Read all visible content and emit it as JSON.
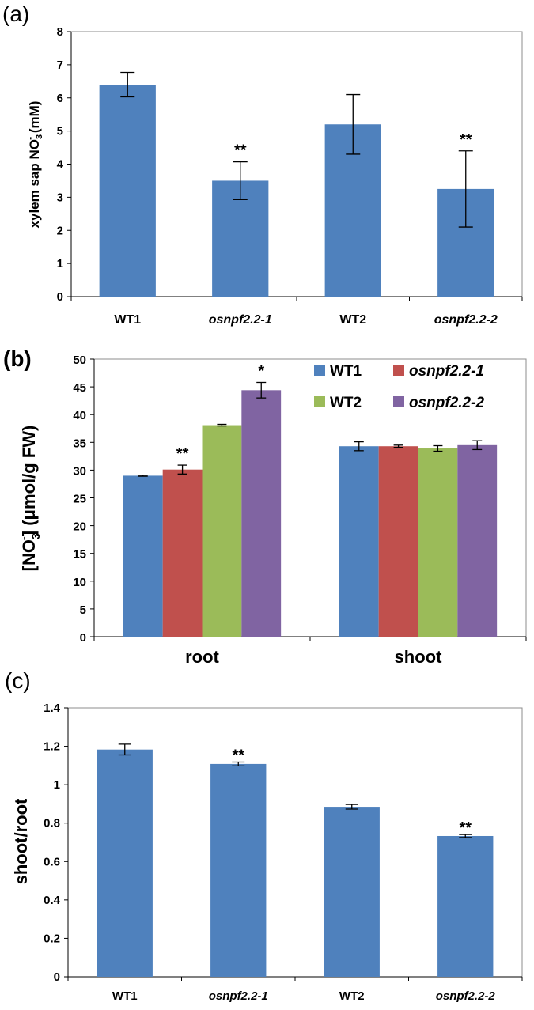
{
  "chart_data": [
    {
      "panel": "(a)",
      "type": "bar",
      "categories": [
        "WT1",
        "osnpf2.2-1",
        "WT2",
        "osnpf2.2-2"
      ],
      "italic_categories": [
        false,
        true,
        false,
        true
      ],
      "values": [
        6.4,
        3.5,
        5.2,
        3.25
      ],
      "errors": [
        0.37,
        0.57,
        0.9,
        1.15
      ],
      "significance": [
        "",
        "**",
        "",
        "**"
      ],
      "ylabel_main": "xylem sap NO",
      "ylabel_sub": "3",
      "ylabel_sup": "-",
      "ylabel_unit": " (mM)",
      "ylim": [
        0,
        8
      ],
      "yticks": [
        0,
        1,
        2,
        3,
        4,
        5,
        6,
        7,
        8
      ],
      "color": "#4f81bd"
    },
    {
      "panel": "(b)",
      "type": "bar",
      "categories": [
        "root",
        "shoot"
      ],
      "series": [
        {
          "name": "WT1",
          "italic": false,
          "color": "#4f81bd",
          "values": [
            29.0,
            34.3
          ],
          "errors": [
            0.1,
            0.8
          ]
        },
        {
          "name": "osnpf2.2-1",
          "italic": true,
          "color": "#c0504d",
          "values": [
            30.1,
            34.3
          ],
          "errors": [
            0.8,
            0.2
          ]
        },
        {
          "name": "WT2",
          "italic": false,
          "color": "#9bbb59",
          "values": [
            38.1,
            33.9
          ],
          "errors": [
            0.15,
            0.5
          ]
        },
        {
          "name": "osnpf2.2-2",
          "italic": true,
          "color": "#8064a2",
          "values": [
            44.4,
            34.5
          ],
          "errors": [
            1.4,
            0.8
          ]
        }
      ],
      "significance": [
        [
          "",
          "**",
          "",
          "*"
        ],
        [
          "",
          "",
          "",
          ""
        ]
      ],
      "ylabel_open": "[NO",
      "ylabel_sub": "3",
      "ylabel_sup": "-",
      "ylabel_close": "] (μmol/g FW)",
      "ylim": [
        0,
        50
      ],
      "yticks": [
        0,
        5,
        10,
        15,
        20,
        25,
        30,
        35,
        40,
        45,
        50
      ],
      "legend_position": "top-right"
    },
    {
      "panel": "(c)",
      "type": "bar",
      "categories": [
        "WT1",
        "osnpf2.2-1",
        "WT2",
        "osnpf2.2-2"
      ],
      "italic_categories": [
        false,
        true,
        false,
        true
      ],
      "values": [
        1.183,
        1.108,
        0.885,
        0.733
      ],
      "errors": [
        0.028,
        0.01,
        0.012,
        0.008
      ],
      "significance": [
        "",
        "**",
        "",
        "**"
      ],
      "ylabel": "shoot/root",
      "ylim": [
        0,
        1.4
      ],
      "yticks": [
        "0",
        "0.2",
        "0.4",
        "0.6",
        "0.8",
        "1",
        "1.2",
        "1.4"
      ],
      "color": "#4f81bd"
    }
  ]
}
